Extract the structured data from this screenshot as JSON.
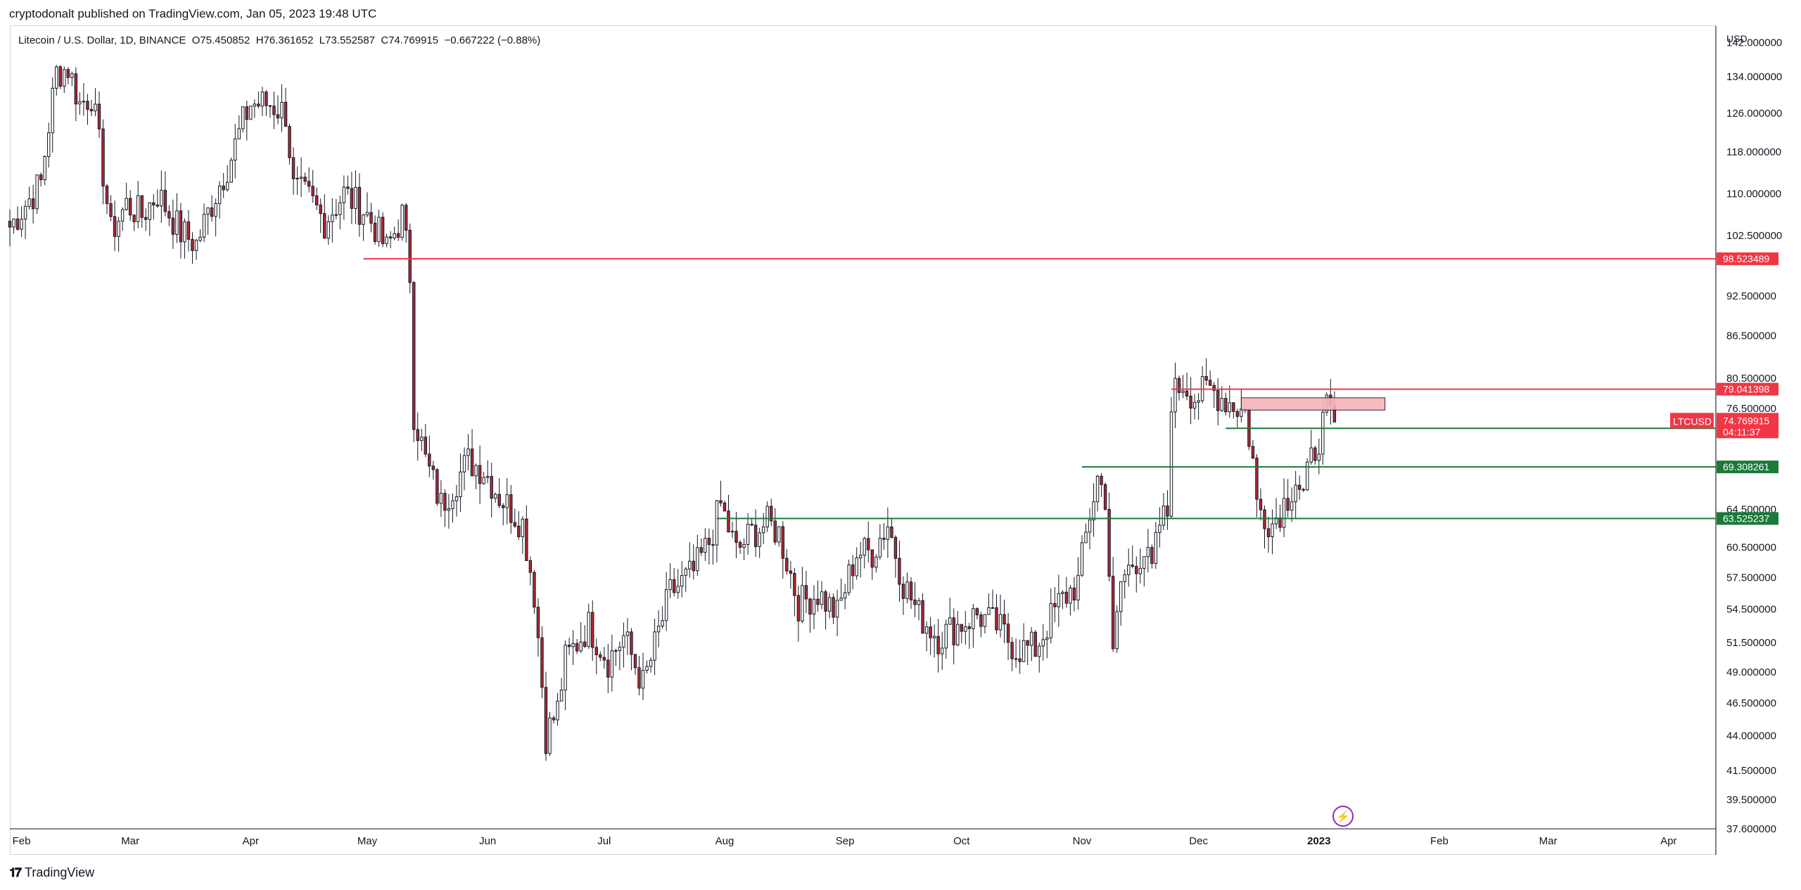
{
  "header": {
    "publish_line": "cryptodonalt published on TradingView.com, Jan 05, 2023 19:48 UTC"
  },
  "legend": {
    "symbol": "Litecoin / U.S. Dollar, 1D, BINANCE",
    "open": "O75.450852",
    "high": "H76.361652",
    "low": "L73.552587",
    "close": "C74.769915",
    "change": "−0.667222 (−0.88%)"
  },
  "footer": {
    "brand": "TradingView",
    "logo_icon": "tradingview-logo-icon"
  },
  "colors": {
    "up": "#26a69a",
    "down": "#b22833",
    "body_up": "#ffffff",
    "resistance": "#f23645",
    "support": "#1b7a3a",
    "axis_text": "#131722",
    "zone_fill": "#f7b3b9",
    "grid": "#e0e3eb"
  },
  "chart_data": {
    "type": "candlestick",
    "title": "Litecoin / U.S. Dollar, 1D, BINANCE",
    "currency_label": "USD",
    "y_scale": "log",
    "ylim": [
      37.6,
      146
    ],
    "y_tick_labels": [
      "142.000000",
      "134.000000",
      "126.000000",
      "118.000000",
      "110.000000",
      "102.500000",
      "92.500000",
      "86.500000",
      "80.500000",
      "76.500000",
      "64.500000",
      "60.500000",
      "57.500000",
      "54.500000",
      "51.500000",
      "49.000000",
      "46.500000",
      "44.000000",
      "41.500000",
      "39.500000",
      "37.600000"
    ],
    "x_tick_labels": [
      "Feb",
      "Mar",
      "Apr",
      "May",
      "Jun",
      "Jul",
      "Aug",
      "Sep",
      "Oct",
      "Nov",
      "Dec",
      "2023",
      "Feb",
      "Mar",
      "Apr"
    ],
    "x_tick_dates": [
      "2022-02-01",
      "2022-03-01",
      "2022-04-01",
      "2022-05-01",
      "2022-06-01",
      "2022-07-01",
      "2022-08-01",
      "2022-09-01",
      "2022-10-01",
      "2022-11-01",
      "2022-12-01",
      "2023-01-01",
      "2023-02-01",
      "2023-03-01",
      "2023-04-01"
    ],
    "xlim": [
      "2022-01-29",
      "2023-04-13"
    ],
    "price_path": [
      [
        "2022-01-29",
        104
      ],
      [
        "2022-02-06",
        112
      ],
      [
        "2022-02-10",
        135
      ],
      [
        "2022-02-13",
        136
      ],
      [
        "2022-02-16",
        128
      ],
      [
        "2022-02-19",
        130
      ],
      [
        "2022-02-22",
        114
      ],
      [
        "2022-02-24",
        103
      ],
      [
        "2022-02-28",
        108
      ],
      [
        "2022-03-04",
        106
      ],
      [
        "2022-03-08",
        110
      ],
      [
        "2022-03-14",
        103
      ],
      [
        "2022-03-18",
        101
      ],
      [
        "2022-03-23",
        110
      ],
      [
        "2022-03-27",
        117
      ],
      [
        "2022-03-30",
        124
      ],
      [
        "2022-04-01",
        128
      ],
      [
        "2022-04-06",
        128
      ],
      [
        "2022-04-10",
        126
      ],
      [
        "2022-04-12",
        111
      ],
      [
        "2022-04-16",
        109
      ],
      [
        "2022-04-20",
        105
      ],
      [
        "2022-04-25",
        110
      ],
      [
        "2022-04-30",
        107
      ],
      [
        "2022-05-03",
        104
      ],
      [
        "2022-05-06",
        100
      ],
      [
        "2022-05-10",
        106
      ],
      [
        "2022-05-12",
        96
      ],
      [
        "2022-05-13",
        76
      ],
      [
        "2022-05-16",
        70
      ],
      [
        "2022-05-20",
        65
      ],
      [
        "2022-05-27",
        70
      ],
      [
        "2022-05-31",
        69
      ],
      [
        "2022-06-04",
        66
      ],
      [
        "2022-06-10",
        63
      ],
      [
        "2022-06-13",
        56
      ],
      [
        "2022-06-16",
        44
      ],
      [
        "2022-06-19",
        46
      ],
      [
        "2022-06-21",
        50
      ],
      [
        "2022-06-27",
        53
      ],
      [
        "2022-07-02",
        50
      ],
      [
        "2022-07-06",
        52
      ],
      [
        "2022-07-11",
        48
      ],
      [
        "2022-07-13",
        50
      ],
      [
        "2022-07-18",
        56
      ],
      [
        "2022-07-24",
        58
      ],
      [
        "2022-07-28",
        61
      ],
      [
        "2022-07-31",
        65
      ],
      [
        "2022-08-04",
        60
      ],
      [
        "2022-08-08",
        62
      ],
      [
        "2022-08-12",
        63
      ],
      [
        "2022-08-15",
        62
      ],
      [
        "2022-08-20",
        55
      ],
      [
        "2022-08-25",
        56
      ],
      [
        "2022-08-30",
        54
      ],
      [
        "2022-09-04",
        60
      ],
      [
        "2022-09-08",
        60
      ],
      [
        "2022-09-12",
        63
      ],
      [
        "2022-09-16",
        57
      ],
      [
        "2022-09-20",
        54
      ],
      [
        "2022-09-25",
        52
      ],
      [
        "2022-09-30",
        53
      ],
      [
        "2022-10-05",
        54
      ],
      [
        "2022-10-10",
        53
      ],
      [
        "2022-10-15",
        51
      ],
      [
        "2022-10-20",
        51
      ],
      [
        "2022-10-26",
        55
      ],
      [
        "2022-10-31",
        57
      ],
      [
        "2022-11-03",
        64
      ],
      [
        "2022-11-05",
        68
      ],
      [
        "2022-11-07",
        66
      ],
      [
        "2022-11-09",
        50
      ],
      [
        "2022-11-11",
        57
      ],
      [
        "2022-11-14",
        59
      ],
      [
        "2022-11-17",
        60
      ],
      [
        "2022-11-19",
        58
      ],
      [
        "2022-11-21",
        63
      ],
      [
        "2022-11-23",
        64
      ],
      [
        "2022-11-24",
        78
      ],
      [
        "2022-11-27",
        80
      ],
      [
        "2022-11-30",
        78
      ],
      [
        "2022-12-04",
        79
      ],
      [
        "2022-12-07",
        78
      ],
      [
        "2022-12-10",
        77
      ],
      [
        "2022-12-13",
        76
      ],
      [
        "2022-12-15",
        70
      ],
      [
        "2022-12-16",
        65
      ],
      [
        "2022-12-20",
        63
      ],
      [
        "2022-12-24",
        66
      ],
      [
        "2022-12-26",
        68
      ],
      [
        "2022-12-28",
        66
      ],
      [
        "2022-12-30",
        70
      ],
      [
        "2023-01-01",
        73
      ],
      [
        "2023-01-03",
        76
      ],
      [
        "2023-01-05",
        74.77
      ]
    ],
    "horizontal_levels": [
      {
        "value": 98.523489,
        "label": "98.523489",
        "color": "#f23645",
        "from": "2022-04-30"
      },
      {
        "value": 79.041398,
        "label": "79.041398",
        "color": "#f23645",
        "from": "2022-11-24"
      },
      {
        "value": 73.986378,
        "label": "73.986378",
        "color": "#1b7a3a",
        "from": "2022-12-08"
      },
      {
        "value": 69.308261,
        "label": "69.308261",
        "color": "#1b7a3a",
        "from": "2022-11-01"
      },
      {
        "value": 63.525237,
        "label": "63.525237",
        "color": "#1b7a3a",
        "from": "2022-07-30"
      }
    ],
    "zone": {
      "from": "2022-12-12",
      "to": "2023-01-18",
      "low": 76.3,
      "high": 77.9,
      "color": "#f7b3b9"
    },
    "last_price": {
      "symbol": "LTCUSD",
      "value": "74.769915",
      "countdown": "04:11:37",
      "price": 74.769915
    }
  }
}
